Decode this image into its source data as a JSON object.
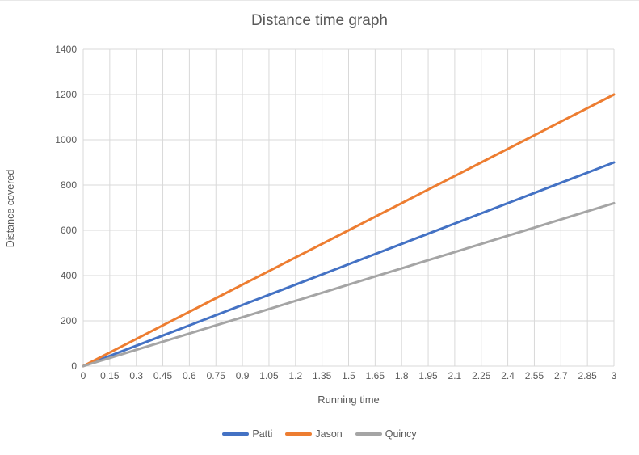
{
  "chart": {
    "title": "Distance time graph",
    "x_axis_title": "Running time",
    "y_axis_title": "Distance covered"
  },
  "chart_data": {
    "type": "line",
    "title": "Distance time graph",
    "xlabel": "Running time",
    "ylabel": "Distance covered",
    "categories": [
      "0",
      "0.15",
      "0.3",
      "0.45",
      "0.6",
      "0.75",
      "0.9",
      "1.05",
      "1.2",
      "1.35",
      "1.5",
      "1.65",
      "1.8",
      "1.95",
      "2.1",
      "2.25",
      "2.4",
      "2.55",
      "2.7",
      "2.85",
      "3"
    ],
    "series": [
      {
        "name": "Patti",
        "color": "#4472C4",
        "values": [
          0,
          45,
          90,
          135,
          180,
          225,
          270,
          315,
          360,
          405,
          450,
          495,
          540,
          585,
          630,
          675,
          720,
          765,
          810,
          855,
          900
        ]
      },
      {
        "name": "Jason",
        "color": "#ED7D31",
        "values": [
          0,
          60,
          120,
          180,
          240,
          300,
          360,
          420,
          480,
          540,
          600,
          660,
          720,
          780,
          840,
          900,
          960,
          1020,
          1080,
          1140,
          1200
        ]
      },
      {
        "name": "Quincy",
        "color": "#A5A5A5",
        "values": [
          0,
          36,
          72,
          108,
          144,
          180,
          216,
          252,
          288,
          324,
          360,
          396,
          432,
          468,
          504,
          540,
          576,
          612,
          648,
          684,
          720
        ]
      }
    ],
    "ylim": [
      0,
      1400
    ],
    "y_tick_step": 200,
    "y_tick_labels": [
      "0",
      "200",
      "400",
      "600",
      "800",
      "1000",
      "1200",
      "1400"
    ],
    "grid": true,
    "legend_position": "bottom"
  },
  "colors": {
    "gridline": "#D9D9D9",
    "axis_line": "#D9D9D9",
    "text": "#595959",
    "background": "#FFFFFF"
  }
}
